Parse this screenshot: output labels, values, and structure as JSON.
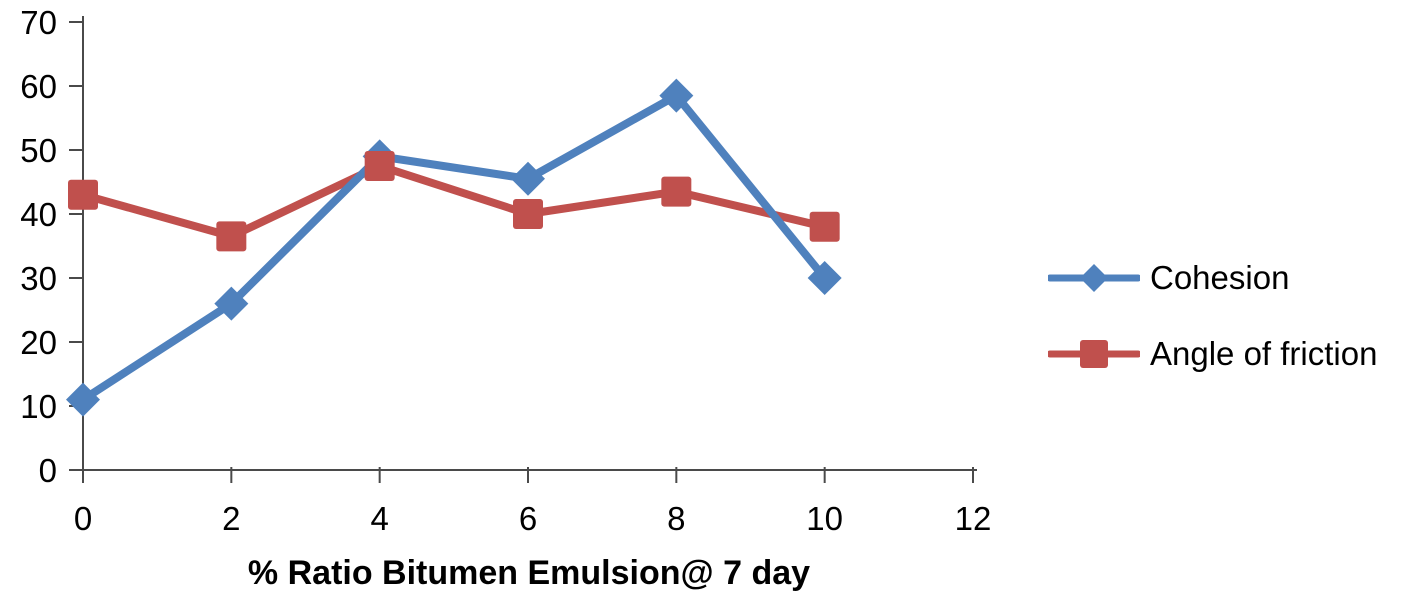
{
  "chart_data": {
    "type": "line",
    "title": "",
    "xlabel": "% Ratio Bitumen Emulsion@ 7 day",
    "ylabel": "",
    "x": [
      0,
      2,
      4,
      6,
      8,
      10
    ],
    "series": [
      {
        "name": "Cohesion",
        "color": "#4F81BD",
        "marker": "diamond",
        "values": [
          11,
          26,
          49,
          45.5,
          58.5,
          30
        ]
      },
      {
        "name": "Angle of friction",
        "color": "#C0504D",
        "marker": "square",
        "values": [
          43,
          36.5,
          47.5,
          40,
          43.5,
          38
        ]
      }
    ],
    "xlim": [
      0,
      12
    ],
    "ylim": [
      0,
      70
    ],
    "x_ticks": [
      0,
      2,
      4,
      6,
      8,
      10,
      12
    ],
    "y_ticks": [
      0,
      10,
      20,
      30,
      40,
      50,
      60,
      70
    ],
    "grid": false,
    "legend_position": "right",
    "axis_color": "#4a4a4a",
    "text_color": "#000000"
  }
}
